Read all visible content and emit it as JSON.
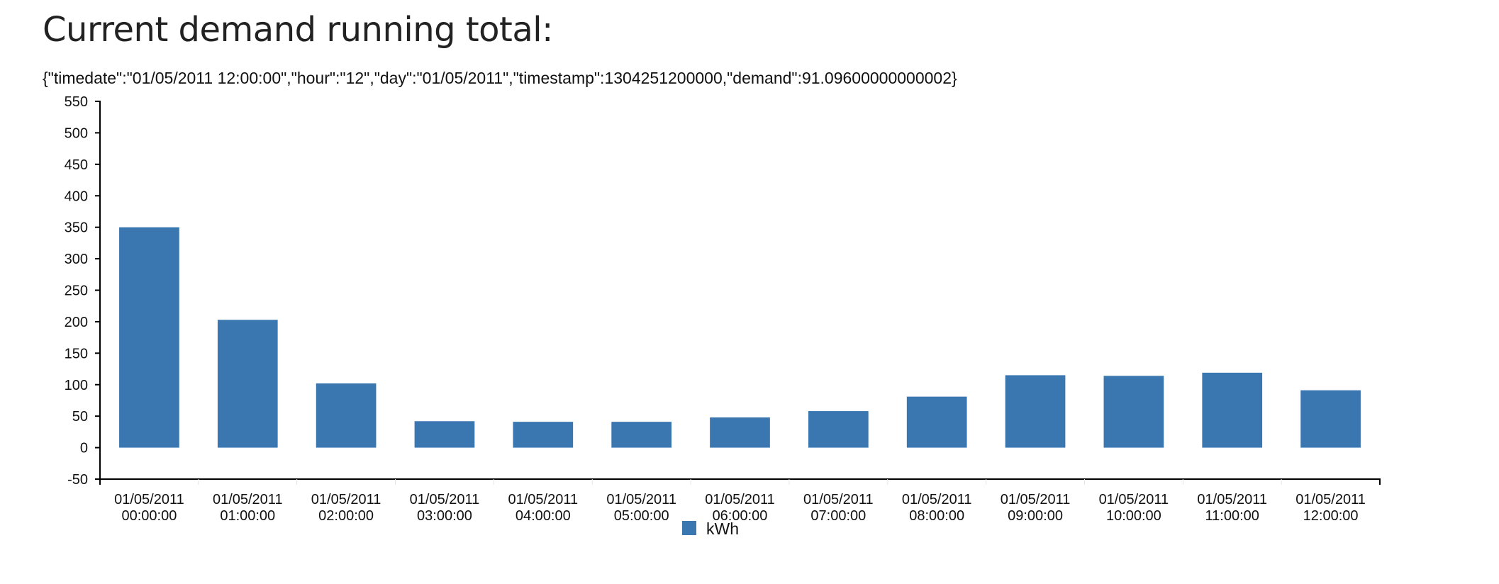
{
  "header": {
    "title": "Current demand running total:",
    "json_line": "{\"timedate\":\"01/05/2011 12:00:00\",\"hour\":\"12\",\"day\":\"01/05/2011\",\"timestamp\":1304251200000,\"demand\":91.09600000000002}"
  },
  "chart_data": {
    "type": "bar",
    "categories": [
      [
        "01/05/2011",
        "00:00:00"
      ],
      [
        "01/05/2011",
        "01:00:00"
      ],
      [
        "01/05/2011",
        "02:00:00"
      ],
      [
        "01/05/2011",
        "03:00:00"
      ],
      [
        "01/05/2011",
        "04:00:00"
      ],
      [
        "01/05/2011",
        "05:00:00"
      ],
      [
        "01/05/2011",
        "06:00:00"
      ],
      [
        "01/05/2011",
        "07:00:00"
      ],
      [
        "01/05/2011",
        "08:00:00"
      ],
      [
        "01/05/2011",
        "09:00:00"
      ],
      [
        "01/05/2011",
        "10:00:00"
      ],
      [
        "01/05/2011",
        "11:00:00"
      ],
      [
        "01/05/2011",
        "12:00:00"
      ]
    ],
    "series": [
      {
        "name": "kWh",
        "color": "#3a76b0",
        "values": [
          350,
          203,
          102,
          42,
          41,
          41,
          48,
          58,
          81,
          115,
          114,
          119,
          91.1
        ]
      }
    ],
    "ylim": [
      -50,
      550
    ],
    "yticks": [
      -50,
      0,
      50,
      100,
      150,
      200,
      250,
      300,
      350,
      400,
      450,
      500,
      550
    ],
    "legend": "bottom-center",
    "grid": false
  }
}
